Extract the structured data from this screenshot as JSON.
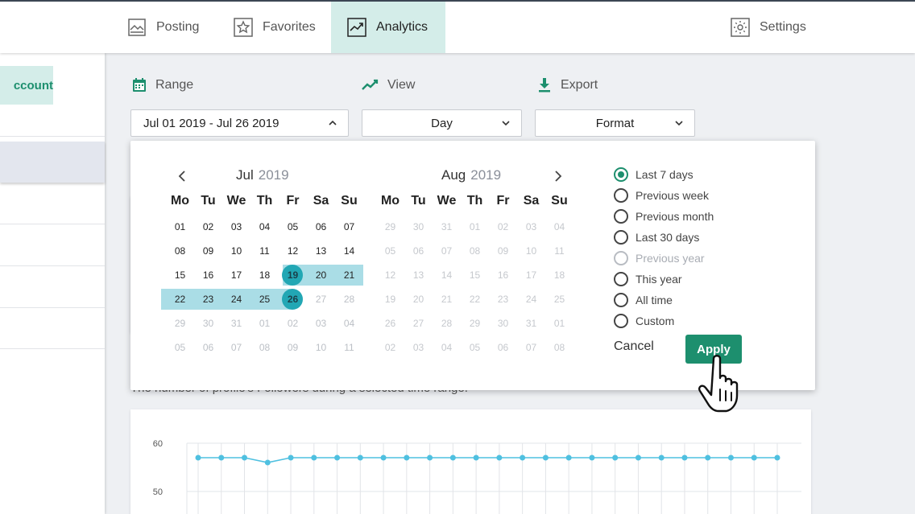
{
  "nav": {
    "tabs": [
      {
        "label": "Posting",
        "icon": "posting-icon"
      },
      {
        "label": "Favorites",
        "icon": "star-icon"
      },
      {
        "label": "Analytics",
        "icon": "analytics-icon",
        "active": true
      },
      {
        "label": "Settings",
        "icon": "gear-icon"
      }
    ]
  },
  "sidebar": {
    "account_label": "ccount"
  },
  "toolbar": {
    "range_label": "Range",
    "view_label": "View",
    "export_label": "Export",
    "range_value": "Jul 01 2019 - Jul 26 2019",
    "view_value": "Day",
    "export_value": "Format"
  },
  "calendar": {
    "left": {
      "month": "Jul",
      "year": "2019"
    },
    "right": {
      "month": "Aug",
      "year": "2019"
    },
    "weekdays": [
      "Mo",
      "Tu",
      "We",
      "Th",
      "Fr",
      "Sa",
      "Su"
    ],
    "left_weeks": [
      [
        "01",
        "02",
        "03",
        "04",
        "05",
        "06",
        "07"
      ],
      [
        "08",
        "09",
        "10",
        "11",
        "12",
        "13",
        "14"
      ],
      [
        "15",
        "16",
        "17",
        "18",
        "19",
        "20",
        "21"
      ],
      [
        "22",
        "23",
        "24",
        "25",
        "26",
        "27",
        "28"
      ],
      [
        "29",
        "30",
        "31",
        "01",
        "02",
        "03",
        "04"
      ],
      [
        "05",
        "06",
        "07",
        "08",
        "09",
        "10",
        "11"
      ]
    ],
    "right_weeks": [
      [
        "29",
        "30",
        "31",
        "01",
        "02",
        "03",
        "04"
      ],
      [
        "05",
        "06",
        "07",
        "08",
        "09",
        "10",
        "11"
      ],
      [
        "12",
        "13",
        "14",
        "15",
        "16",
        "17",
        "18"
      ],
      [
        "19",
        "20",
        "21",
        "22",
        "23",
        "24",
        "25"
      ],
      [
        "26",
        "27",
        "28",
        "29",
        "30",
        "31",
        "01"
      ],
      [
        "02",
        "03",
        "04",
        "05",
        "06",
        "07",
        "08"
      ]
    ],
    "selected_start": "19",
    "selected_end": "26"
  },
  "presets": [
    {
      "label": "Last 7 days",
      "checked": true
    },
    {
      "label": "Previous week"
    },
    {
      "label": "Previous month"
    },
    {
      "label": "Last 30 days"
    },
    {
      "label": "Previous year",
      "disabled": true
    },
    {
      "label": "This year"
    },
    {
      "label": "All time"
    },
    {
      "label": "Custom"
    }
  ],
  "actions": {
    "cancel_label": "Cancel",
    "apply_label": "Apply"
  },
  "behind_text": "The number of profile's Followers during a selected time range.",
  "colors": {
    "accent": "#1d8f6e",
    "range": "#aadde6",
    "range_end": "#22a7b4",
    "line": "#4fc0e0"
  },
  "chart_data": {
    "type": "line",
    "yticks": [
      "60",
      "50"
    ],
    "ylim": [
      40,
      60
    ],
    "values": [
      57,
      57,
      57,
      56,
      57,
      57,
      57,
      57,
      57,
      57,
      57,
      57,
      57,
      57,
      57,
      57,
      57,
      57,
      57,
      57,
      57,
      57,
      57,
      57,
      57,
      57
    ]
  }
}
